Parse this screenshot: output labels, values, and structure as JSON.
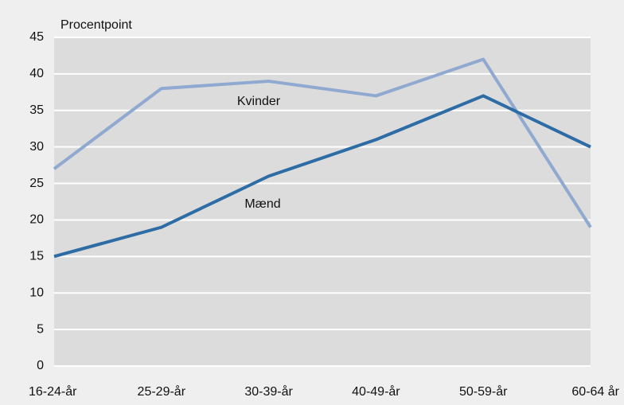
{
  "chart_data": {
    "type": "line",
    "y_label": "Procentpoint",
    "categories": [
      "16-24-år",
      "25-29-år",
      "30-39-år",
      "40-49-år",
      "50-59-år",
      "60-64 år"
    ],
    "series": [
      {
        "name": "Kvinder",
        "color": "#8fa9d0",
        "values": [
          27,
          38,
          39,
          37,
          42,
          19
        ]
      },
      {
        "name": "Mænd",
        "color": "#2e6ca5",
        "values": [
          15,
          19,
          26,
          31,
          37,
          30
        ]
      }
    ],
    "ylim": [
      0,
      45
    ],
    "yticks": [
      0,
      5,
      10,
      15,
      20,
      25,
      30,
      35,
      40,
      45
    ],
    "grid": true
  }
}
